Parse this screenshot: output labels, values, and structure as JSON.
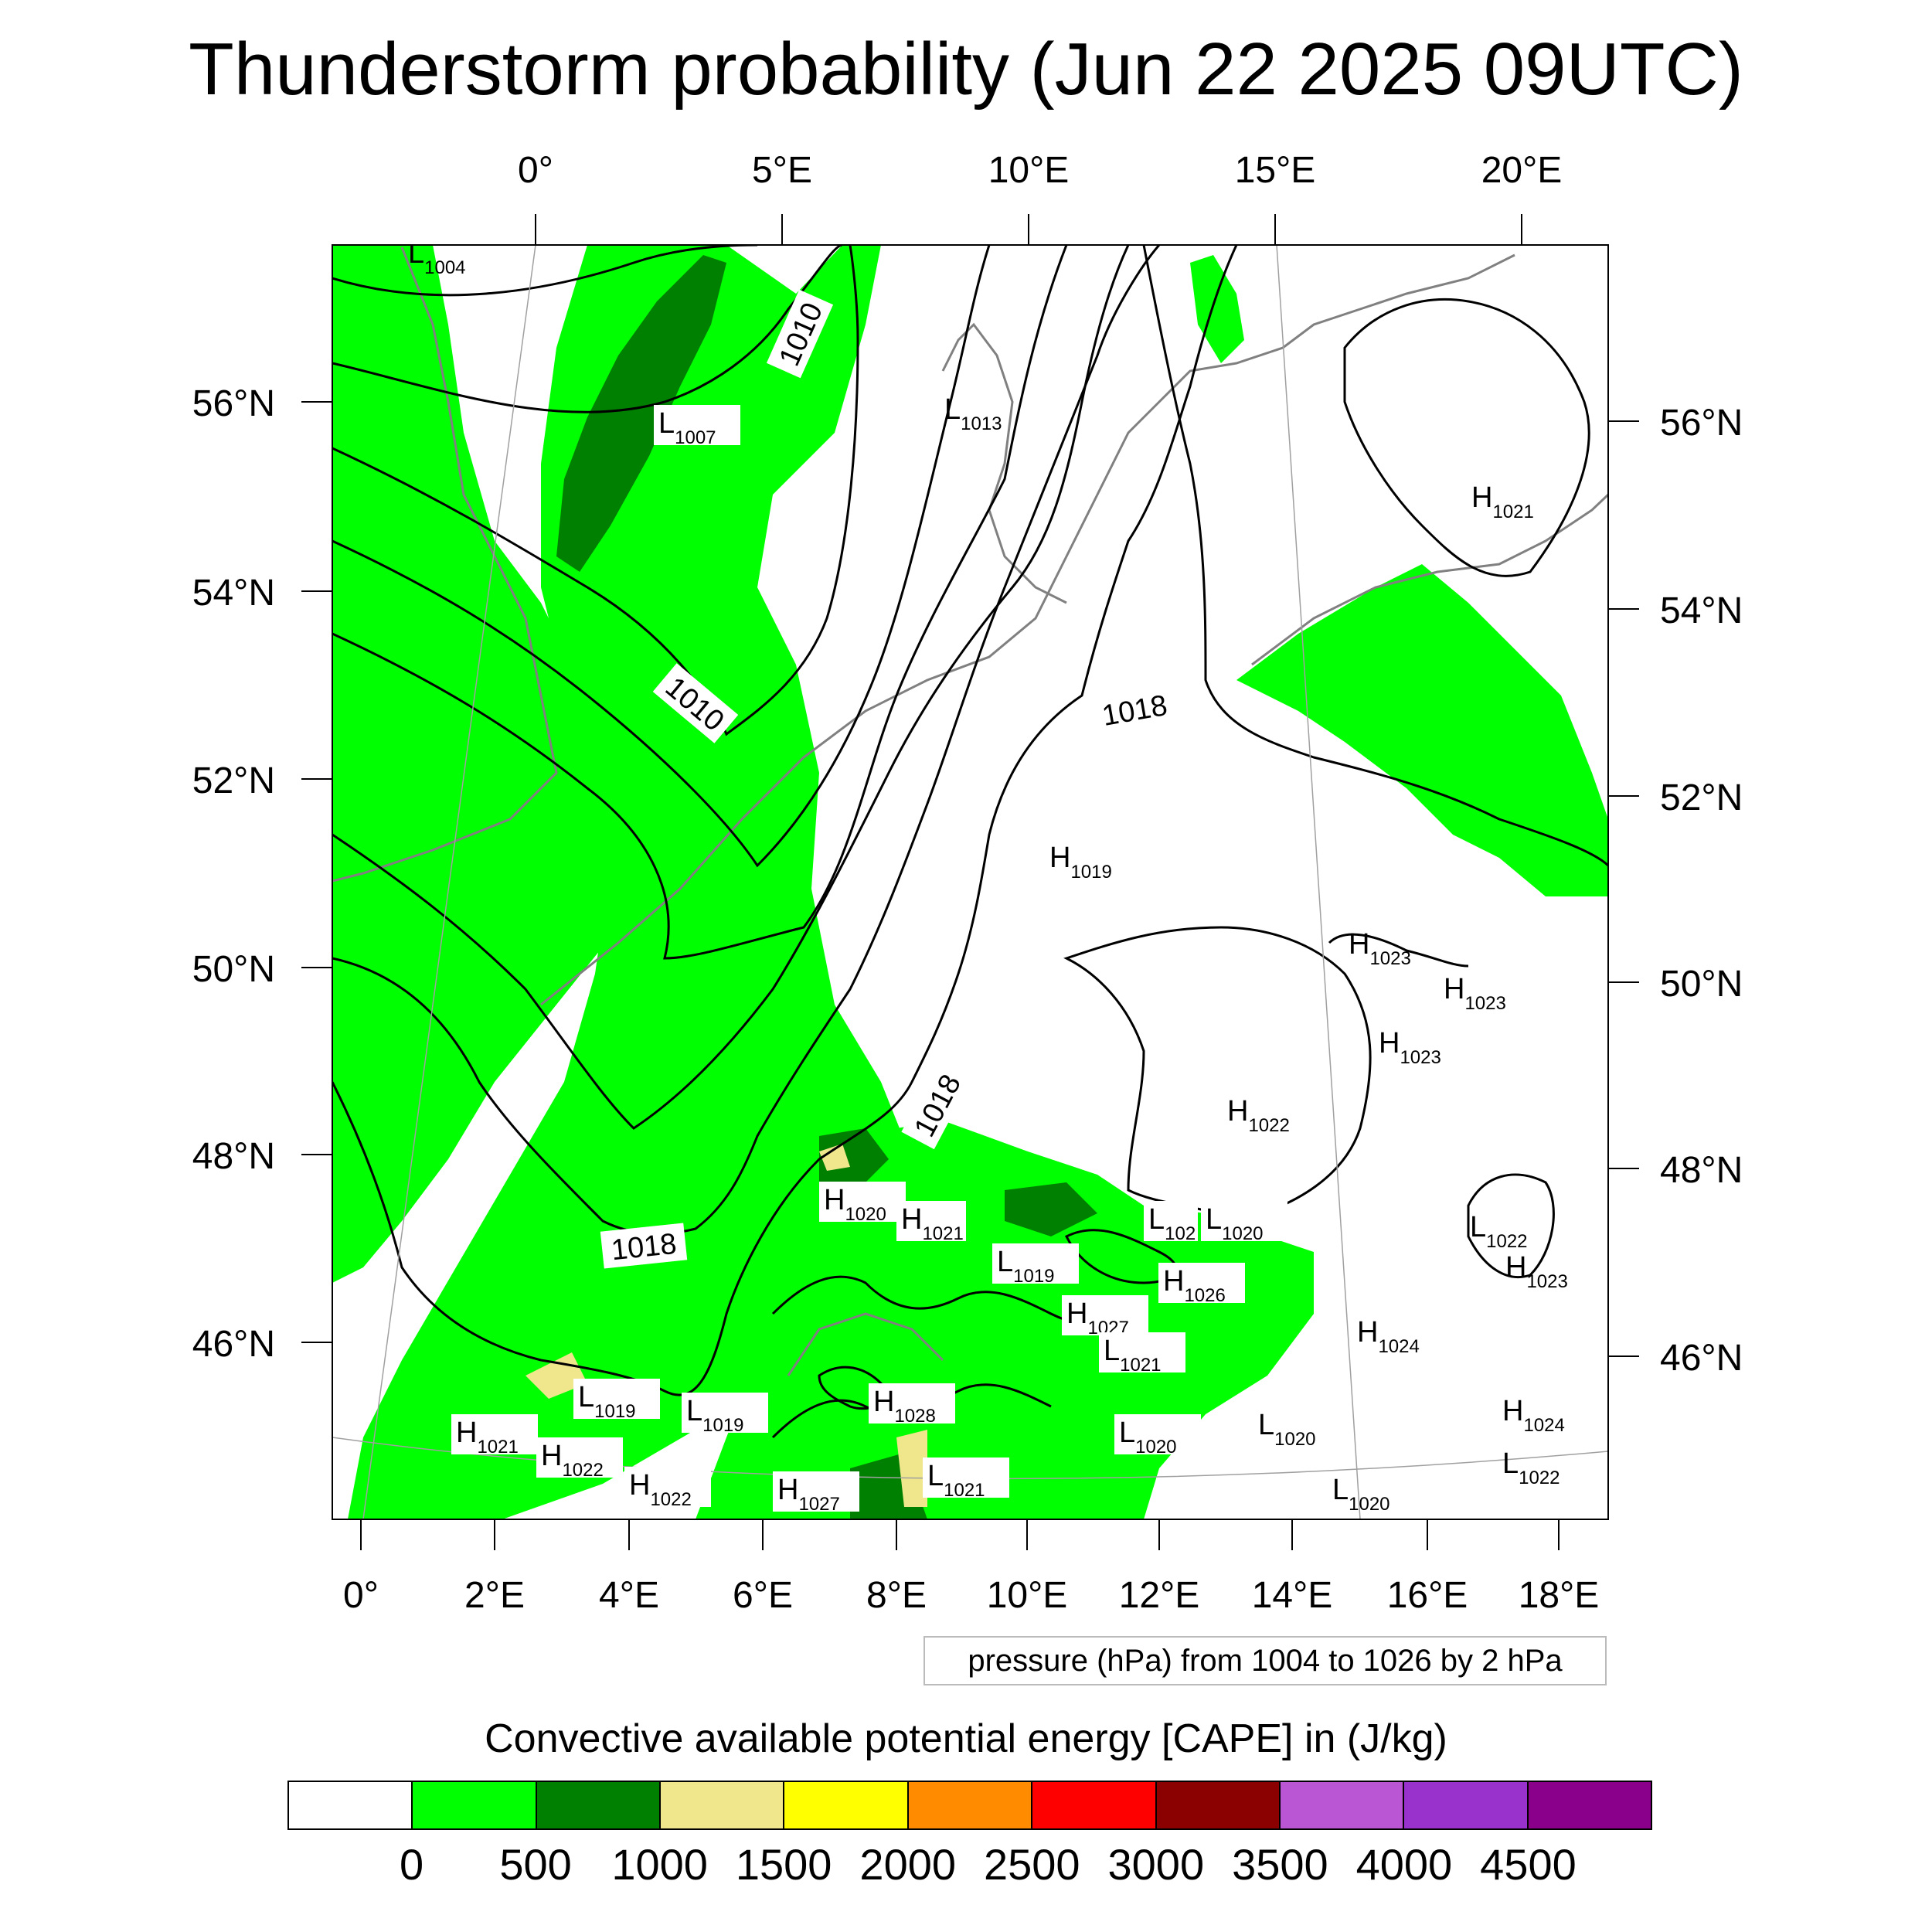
{
  "title": "Thunderstorm probability (Jun 22 2025 09UTC)",
  "map": {
    "top_lon_labels": [
      "0°",
      "5°E",
      "10°E",
      "15°E",
      "20°E"
    ],
    "bottom_lon_labels": [
      "0°",
      "2°E",
      "4°E",
      "6°E",
      "8°E",
      "10°E",
      "12°E",
      "14°E",
      "16°E",
      "18°E"
    ],
    "left_lat_labels": [
      "56°N",
      "54°N",
      "52°N",
      "50°N",
      "48°N",
      "46°N"
    ],
    "right_lat_labels": [
      "56°N",
      "54°N",
      "52°N",
      "50°N",
      "48°N",
      "46°N"
    ],
    "isobar_labels": [
      "1010",
      "1010",
      "1018",
      "1018",
      "1018"
    ],
    "pressure_centers": [
      {
        "type": "L",
        "value": "1004"
      },
      {
        "type": "L",
        "value": "1007"
      },
      {
        "type": "L",
        "value": "1013"
      },
      {
        "type": "H",
        "value": "1021"
      },
      {
        "type": "H",
        "value": "1019"
      },
      {
        "type": "H",
        "value": "1023"
      },
      {
        "type": "H",
        "value": "1023"
      },
      {
        "type": "H",
        "value": "1023"
      },
      {
        "type": "H",
        "value": "1022"
      },
      {
        "type": "H",
        "value": "1020"
      },
      {
        "type": "H",
        "value": "1021"
      },
      {
        "type": "L",
        "value": "1019"
      },
      {
        "type": "L",
        "value": "102"
      },
      {
        "type": "L",
        "value": "1020"
      },
      {
        "type": "H",
        "value": "1026"
      },
      {
        "type": "H",
        "value": "1027"
      },
      {
        "type": "L",
        "value": "1021"
      },
      {
        "type": "H",
        "value": "1023"
      },
      {
        "type": "L",
        "value": "1022"
      },
      {
        "type": "H",
        "value": "1024"
      },
      {
        "type": "L",
        "value": "1019"
      },
      {
        "type": "L",
        "value": "1019"
      },
      {
        "type": "H",
        "value": "1021"
      },
      {
        "type": "H",
        "value": "1022"
      },
      {
        "type": "H",
        "value": "1022"
      },
      {
        "type": "H",
        "value": "1027"
      },
      {
        "type": "H",
        "value": "1028"
      },
      {
        "type": "L",
        "value": "1021"
      },
      {
        "type": "L",
        "value": "1020"
      },
      {
        "type": "L",
        "value": "1020"
      },
      {
        "type": "L",
        "value": "1020"
      },
      {
        "type": "H",
        "value": "1024"
      },
      {
        "type": "L",
        "value": "1022"
      }
    ]
  },
  "info_box": "pressure (hPa) from 1004 to 1026 by 2 hPa",
  "colorbar": {
    "title": "Convective available potential energy [CAPE] in (J/kg)",
    "colors": [
      "#ffffff",
      "#00ff00",
      "#008000",
      "#f0e68c",
      "#ffff00",
      "#ff8c00",
      "#ff0000",
      "#8b0000",
      "#ba55d3",
      "#9932cc",
      "#8b008b"
    ],
    "labels": [
      "0",
      "500",
      "1000",
      "1500",
      "2000",
      "2500",
      "3000",
      "3500",
      "4000",
      "4500"
    ]
  }
}
